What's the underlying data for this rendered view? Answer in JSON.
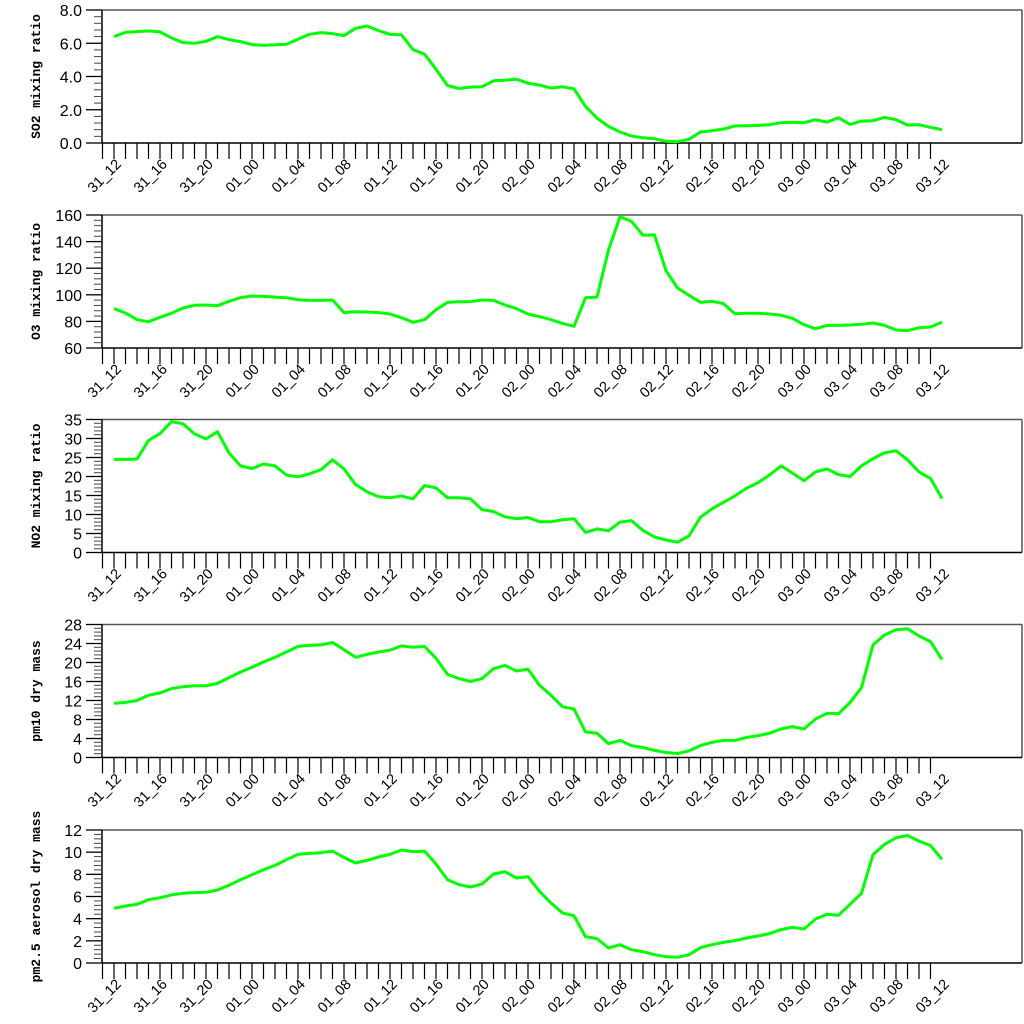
{
  "x_tick_labels": [
    "31_12",
    "31_16",
    "31_20",
    "01_00",
    "01_04",
    "01_08",
    "01_12",
    "01_16",
    "01_20",
    "02_00",
    "02_04",
    "02_08",
    "02_12",
    "02_16",
    "02_20",
    "03_00",
    "03_04",
    "03_08",
    "03_12"
  ],
  "line_color": "#00ff00",
  "chart_data": [
    {
      "type": "line",
      "ylabel": "SO2 mixing ratio",
      "ylim": [
        0,
        8
      ],
      "yticks": [
        "0.0",
        "2.0",
        "4.0",
        "6.0",
        "8.0"
      ],
      "x_start": "31_12",
      "x_step_hours": 1,
      "values": [
        6.4,
        6.66,
        6.7,
        6.74,
        6.68,
        6.32,
        6.04,
        6.0,
        6.12,
        6.4,
        6.22,
        6.1,
        5.92,
        5.88,
        5.9,
        5.94,
        6.24,
        6.54,
        6.64,
        6.58,
        6.46,
        6.9,
        7.04,
        6.76,
        6.54,
        6.5,
        5.62,
        5.34,
        4.44,
        3.46,
        3.28,
        3.36,
        3.38,
        3.74,
        3.78,
        3.84,
        3.6,
        3.48,
        3.3,
        3.38,
        3.26,
        2.2,
        1.5,
        1.0,
        0.66,
        0.42,
        0.32,
        0.26,
        0.1,
        0.08,
        0.22,
        0.66,
        0.74,
        0.84,
        1.02,
        1.04,
        1.06,
        1.1,
        1.22,
        1.24,
        1.22,
        1.4,
        1.26,
        1.52,
        1.12,
        1.32,
        1.34,
        1.54,
        1.4,
        1.08,
        1.1,
        0.94,
        0.8
      ]
    },
    {
      "type": "line",
      "ylabel": "O3 mixing ratio",
      "ylim": [
        60,
        160
      ],
      "yticks": [
        "60",
        "80",
        "100",
        "120",
        "140",
        "160"
      ],
      "x_start": "31_12",
      "x_step_hours": 1,
      "values": [
        89.6,
        86.3,
        81.3,
        79.8,
        83.1,
        86.1,
        90.1,
        92.1,
        92.3,
        91.8,
        95.1,
        97.8,
        99.1,
        98.8,
        98.3,
        97.8,
        96.3,
        95.8,
        95.8,
        96.1,
        86.6,
        87.3,
        87.1,
        86.6,
        85.6,
        82.8,
        79.3,
        81.3,
        88.8,
        94.3,
        94.8,
        94.8,
        96.1,
        95.8,
        92.3,
        89.6,
        85.6,
        83.6,
        81.3,
        78.5,
        76.3,
        97.8,
        98.3,
        133.7,
        158.7,
        155.2,
        144.7,
        145,
        118.1,
        105.1,
        99.6,
        94.3,
        95.1,
        93.3,
        85.8,
        86.1,
        86.1,
        85.6,
        84.6,
        82.3,
        77.5,
        74.5,
        77,
        77,
        77.3,
        77.8,
        78.8,
        77,
        73.5,
        73,
        75.3,
        75.8,
        79.5
      ]
    },
    {
      "type": "line",
      "ylabel": "NO2 mixing ratio",
      "ylim": [
        0,
        35
      ],
      "yticks": [
        "0",
        "5",
        "10",
        "15",
        "20",
        "25",
        "30",
        "35"
      ],
      "x_start": "31_12",
      "x_step_hours": 1,
      "values": [
        24.5,
        24.5,
        24.6,
        29.5,
        31.3,
        34.4,
        33.9,
        31.2,
        29.9,
        31.8,
        26.2,
        22.8,
        22.1,
        23.3,
        22.8,
        20.4,
        19.9,
        20.7,
        21.8,
        24.4,
        22,
        17.9,
        16,
        14.7,
        14.4,
        14.9,
        14.1,
        17.6,
        17,
        14.4,
        14.4,
        14.1,
        11.3,
        10.8,
        9.4,
        8.9,
        9.2,
        8.1,
        8.1,
        8.6,
        8.9,
        5.3,
        6.2,
        5.7,
        8.0,
        8.4,
        5.8,
        4.1,
        3.3,
        2.7,
        4.4,
        9.3,
        11.5,
        13.2,
        14.9,
        16.9,
        18.4,
        20.4,
        22.8,
        20.9,
        18.9,
        21.2,
        22,
        20.5,
        20,
        22.8,
        24.7,
        26.2,
        26.8,
        24.4,
        21.2,
        19.5,
        14.2
      ]
    },
    {
      "type": "line",
      "ylabel": "pm10 dry mass",
      "ylim": [
        0,
        28
      ],
      "yticks": [
        "0",
        "4",
        "8",
        "12",
        "16",
        "20",
        "24",
        "28"
      ],
      "x_start": "31_12",
      "x_step_hours": 1,
      "values": [
        11.4,
        11.6,
        12.0,
        13.1,
        13.6,
        14.5,
        14.9,
        15.1,
        15.1,
        15.6,
        16.8,
        18.0,
        19.0,
        20.1,
        21.1,
        22.2,
        23.4,
        23.6,
        23.7,
        24.2,
        22.7,
        21.1,
        21.7,
        22.2,
        22.6,
        23.5,
        23.2,
        23.4,
        20.9,
        17.5,
        16.6,
        16.0,
        16.6,
        18.7,
        19.4,
        18.2,
        18.6,
        15.2,
        13.1,
        10.7,
        10.2,
        5.4,
        5.1,
        2.9,
        3.6,
        2.5,
        2.1,
        1.5,
        1.05,
        0.85,
        1.4,
        2.5,
        3.2,
        3.6,
        3.6,
        4.2,
        4.6,
        5.1,
        6.0,
        6.5,
        6.0,
        8.1,
        9.3,
        9.2,
        11.6,
        14.7,
        23.7,
        25.8,
        26.9,
        27.1,
        25.6,
        24.4,
        20.6
      ]
    },
    {
      "type": "line",
      "ylabel": "pm2.5 aerosol dry mass",
      "ylim": [
        0,
        12
      ],
      "yticks": [
        "0",
        "2",
        "4",
        "6",
        "8",
        "10",
        "12"
      ],
      "x_start": "31_12",
      "x_step_hours": 1,
      "values": [
        4.93,
        5.14,
        5.29,
        5.71,
        5.89,
        6.14,
        6.29,
        6.35,
        6.38,
        6.59,
        7.01,
        7.52,
        7.97,
        8.42,
        8.81,
        9.32,
        9.8,
        9.89,
        9.95,
        10.1,
        9.53,
        9.02,
        9.26,
        9.56,
        9.8,
        10.2,
        10.05,
        10.1,
        8.93,
        7.52,
        7.07,
        6.86,
        7.13,
        8.03,
        8.24,
        7.67,
        7.79,
        6.47,
        5.41,
        4.51,
        4.27,
        2.38,
        2.2,
        1.35,
        1.65,
        1.2,
        1.02,
        0.75,
        0.57,
        0.51,
        0.75,
        1.38,
        1.65,
        1.86,
        2.02,
        2.26,
        2.44,
        2.65,
        3.01,
        3.22,
        3.07,
        3.97,
        4.39,
        4.3,
        5.29,
        6.29,
        9.77,
        10.7,
        11.3,
        11.5,
        11.0,
        10.6,
        9.35
      ]
    }
  ]
}
